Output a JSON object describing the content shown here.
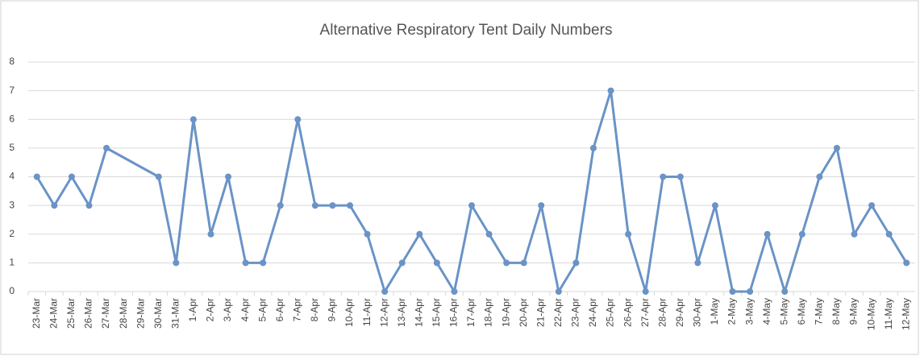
{
  "chart_data": {
    "type": "line",
    "title": "Alternative Respiratory Tent Daily Numbers",
    "categories": [
      "23-Mar",
      "24-Mar",
      "25-Mar",
      "26-Mar",
      "27-Mar",
      "28-Mar",
      "29-Mar",
      "30-Mar",
      "31-Mar",
      "1-Apr",
      "2-Apr",
      "3-Apr",
      "4-Apr",
      "5-Apr",
      "6-Apr",
      "7-Apr",
      "8-Apr",
      "9-Apr",
      "10-Apr",
      "11-Apr",
      "12-Apr",
      "13-Apr",
      "14-Apr",
      "15-Apr",
      "16-Apr",
      "17-Apr",
      "18-Apr",
      "19-Apr",
      "20-Apr",
      "21-Apr",
      "22-Apr",
      "23-Apr",
      "24-Apr",
      "25-Apr",
      "26-Apr",
      "27-Apr",
      "28-Apr",
      "29-Apr",
      "30-Apr",
      "1-May",
      "2-May",
      "3-May",
      "4-May",
      "5-May",
      "6-May",
      "7-May",
      "8-May",
      "9-May",
      "10-May",
      "11-May",
      "12-May"
    ],
    "values": [
      4,
      3,
      4,
      3,
      5,
      null,
      null,
      4,
      1,
      6,
      2,
      4,
      1,
      1,
      3,
      6,
      3,
      3,
      3,
      2,
      0,
      1,
      2,
      1,
      0,
      3,
      2,
      1,
      1,
      3,
      0,
      1,
      5,
      7,
      2,
      0,
      4,
      4,
      1,
      3,
      0,
      0,
      2,
      0,
      2,
      4,
      5,
      2,
      3,
      2,
      1
    ],
    "color": "#6a93c6",
    "span_gaps": true,
    "ylim": [
      0,
      8
    ],
    "yticks": [
      0,
      1,
      2,
      3,
      4,
      5,
      6,
      7,
      8
    ],
    "grid": true
  }
}
